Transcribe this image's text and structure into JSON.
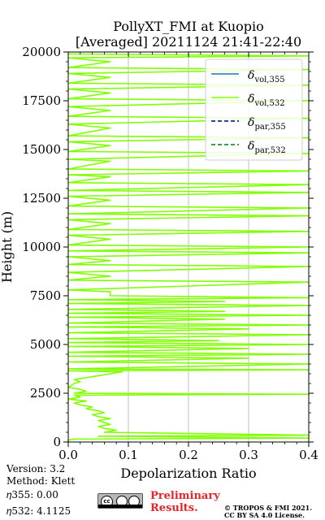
{
  "chart_data": {
    "type": "line",
    "title": [
      "PollyXT_FMI at Kuopio",
      "[Averaged] 20211124 21:41-22:40"
    ],
    "xlabel": "Depolarization Ratio",
    "ylabel": "Height (m)",
    "xlim": [
      0,
      0.4
    ],
    "ylim": [
      0,
      20000
    ],
    "xticks": [
      0.0,
      0.1,
      0.2,
      0.3,
      0.4
    ],
    "xtick_labels": [
      "0.0",
      "0.1",
      "0.2",
      "0.3",
      "0.4"
    ],
    "yticks": [
      0,
      2500,
      5000,
      7500,
      10000,
      12500,
      15000,
      17500,
      20000
    ],
    "ytick_labels": [
      "0",
      "2500",
      "5000",
      "7500",
      "10000",
      "12500",
      "15000",
      "17500",
      "20000"
    ],
    "grid": "vertical",
    "legend": "top-right",
    "legend_entries": [
      {
        "base": "δ",
        "sub": "vol,355",
        "color": "#1f77b4",
        "dash": "solid"
      },
      {
        "base": "δ",
        "sub": "vol,532",
        "color": "#80ff00",
        "dash": "solid"
      },
      {
        "base": "δ",
        "sub": "par,355",
        "color": "#00008b",
        "dash": "dashed"
      },
      {
        "base": "δ",
        "sub": "par,532",
        "color": "#008000",
        "dash": "dashed"
      }
    ],
    "series": [
      {
        "color": "#80ff00",
        "points": [
          [
            0.0,
            0
          ],
          [
            0.0,
            100
          ],
          [
            0.01,
            150
          ],
          [
            0.4,
            200
          ],
          [
            0.05,
            300
          ],
          [
            0.4,
            350
          ],
          [
            0.06,
            500
          ],
          [
            0.08,
            600
          ],
          [
            0.06,
            700
          ],
          [
            0.05,
            800
          ],
          [
            0.07,
            900
          ],
          [
            0.06,
            1000
          ],
          [
            0.05,
            1100
          ],
          [
            0.07,
            1200
          ],
          [
            0.05,
            1300
          ],
          [
            0.04,
            1400
          ],
          [
            0.06,
            1500
          ],
          [
            0.05,
            1600
          ],
          [
            0.03,
            1700
          ],
          [
            0.04,
            1800
          ],
          [
            0.02,
            1900
          ],
          [
            0.01,
            2000
          ],
          [
            0.03,
            2100
          ],
          [
            0.0,
            2200
          ],
          [
            0.02,
            2300
          ],
          [
            0.01,
            2400
          ],
          [
            0.4,
            2450
          ],
          [
            0.01,
            2500
          ],
          [
            0.03,
            2600
          ],
          [
            0.02,
            2700
          ],
          [
            0.0,
            2800
          ],
          [
            0.01,
            3000
          ],
          [
            0.02,
            3100
          ],
          [
            0.01,
            3200
          ],
          [
            0.03,
            3300
          ],
          [
            0.05,
            3400
          ],
          [
            0.09,
            3600
          ],
          [
            0.0,
            3650
          ],
          [
            0.4,
            3700
          ],
          [
            0.0,
            3750
          ],
          [
            0.4,
            4000
          ],
          [
            0.0,
            4100
          ],
          [
            0.3,
            4300
          ],
          [
            0.0,
            4400
          ],
          [
            0.4,
            4500
          ],
          [
            0.0,
            4600
          ],
          [
            0.3,
            4800
          ],
          [
            0.0,
            4900
          ],
          [
            0.4,
            5000
          ],
          [
            0.0,
            5100
          ],
          [
            0.25,
            5200
          ],
          [
            0.0,
            5300
          ],
          [
            0.4,
            5500
          ],
          [
            0.0,
            5600
          ],
          [
            0.3,
            5800
          ],
          [
            0.0,
            5900
          ],
          [
            0.4,
            6000
          ],
          [
            0.0,
            6100
          ],
          [
            0.26,
            6300
          ],
          [
            0.0,
            6400
          ],
          [
            0.4,
            6500
          ],
          [
            0.0,
            6600
          ],
          [
            0.26,
            6700
          ],
          [
            0.0,
            6800
          ],
          [
            0.4,
            7000
          ],
          [
            0.0,
            7100
          ],
          [
            0.26,
            7200
          ],
          [
            0.0,
            7300
          ],
          [
            0.4,
            7400
          ],
          [
            0.07,
            7500
          ],
          [
            0.07,
            7700
          ],
          [
            0.0,
            7800
          ],
          [
            0.4,
            8200
          ],
          [
            0.0,
            8300
          ],
          [
            0.07,
            8500
          ],
          [
            0.0,
            8700
          ],
          [
            0.4,
            9000
          ],
          [
            0.0,
            9100
          ],
          [
            0.07,
            9300
          ],
          [
            0.0,
            9500
          ],
          [
            0.4,
            9700
          ],
          [
            0.0,
            9800
          ],
          [
            0.4,
            10000
          ],
          [
            0.0,
            10100
          ],
          [
            0.07,
            10400
          ],
          [
            0.0,
            10600
          ],
          [
            0.4,
            10800
          ],
          [
            0.0,
            10900
          ],
          [
            0.07,
            11200
          ],
          [
            0.0,
            11400
          ],
          [
            0.4,
            11600
          ],
          [
            0.0,
            11700
          ],
          [
            0.4,
            12000
          ],
          [
            0.0,
            12100
          ],
          [
            0.07,
            12400
          ],
          [
            0.0,
            12600
          ],
          [
            0.4,
            12800
          ],
          [
            0.0,
            12900
          ],
          [
            0.4,
            13200
          ],
          [
            0.0,
            13300
          ],
          [
            0.07,
            13600
          ],
          [
            0.0,
            13700
          ],
          [
            0.4,
            13900
          ],
          [
            0.0,
            14000
          ],
          [
            0.07,
            14400
          ],
          [
            0.0,
            14500
          ],
          [
            0.4,
            14800
          ],
          [
            0.0,
            14900
          ],
          [
            0.07,
            15200
          ],
          [
            0.0,
            15400
          ],
          [
            0.4,
            15600
          ],
          [
            0.0,
            15700
          ],
          [
            0.07,
            16100
          ],
          [
            0.0,
            16300
          ],
          [
            0.4,
            16600
          ],
          [
            0.0,
            16700
          ],
          [
            0.07,
            17000
          ],
          [
            0.0,
            17200
          ],
          [
            0.4,
            17500
          ],
          [
            0.0,
            17600
          ],
          [
            0.07,
            17900
          ],
          [
            0.0,
            18100
          ],
          [
            0.4,
            18300
          ],
          [
            0.0,
            18400
          ],
          [
            0.07,
            18700
          ],
          [
            0.0,
            18900
          ],
          [
            0.4,
            19100
          ],
          [
            0.0,
            19200
          ],
          [
            0.07,
            19500
          ],
          [
            0.0,
            19700
          ],
          [
            0.4,
            19800
          ],
          [
            0.0,
            19900
          ]
        ]
      }
    ]
  },
  "info": {
    "version": "Version: 3.2",
    "method": "Method: Klett",
    "eta355": "𝜂355:   0.00",
    "eta532": "𝜂532: 4.1125"
  },
  "notice": {
    "preliminary_line1": "Preliminary",
    "preliminary_line2": "Results.",
    "copyright_line1": "© TROPOS & FMI 2021.",
    "copyright_line2": "CC BY SA 4.0 License."
  },
  "license_badge": {
    "text": "cc",
    "icon": "cc-by-sa-icon"
  }
}
